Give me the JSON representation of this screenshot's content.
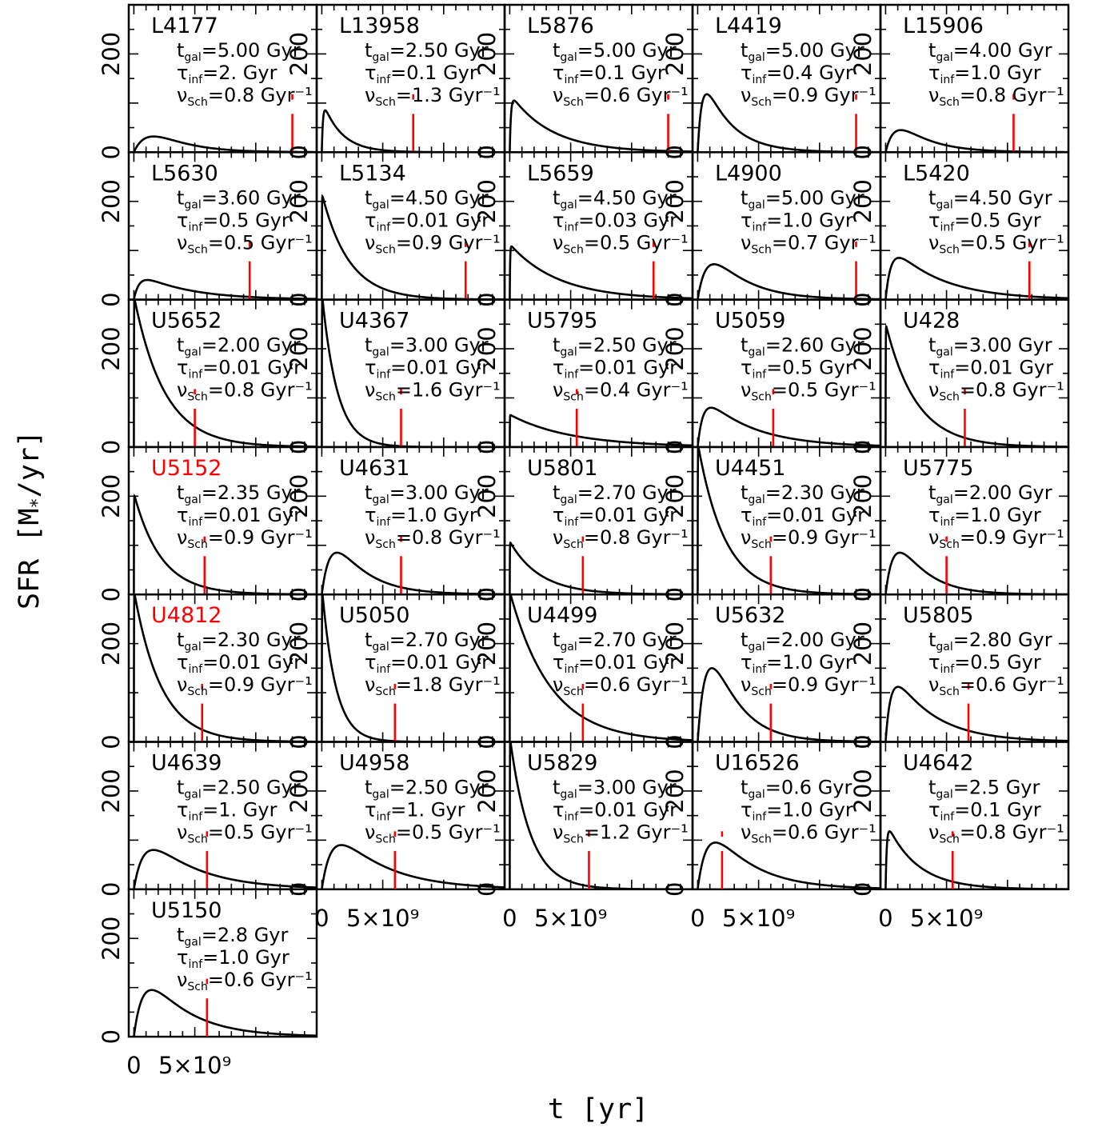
{
  "colors": {
    "curve": "#000000",
    "marker": "#ff0000",
    "highlight_name": "#ff0000",
    "frame": "#000000"
  },
  "chart_data": {
    "type": "line",
    "layout": "small-multiples-grid",
    "columns": 5,
    "xlabel": "t [yr]",
    "ylabel": "SFR [M*/yr]",
    "xlim": [
      -420000000.0,
      15000000000.0
    ],
    "ylim": [
      0,
      300
    ],
    "x_tick_labels": [
      "0",
      "5×10⁹"
    ],
    "y_tick_labels": [
      "0",
      "200"
    ],
    "grid": false,
    "legend": "none",
    "param_labels": {
      "t": "t",
      "tau": "τ",
      "nu": "ν",
      "t_sub": "gal",
      "tau_sub": "inf",
      "nu_sub": "Sch",
      "unit": "Gyr",
      "unit_inv": "Gyr⁻¹"
    },
    "panels": [
      {
        "name": "L4177",
        "t_gal": "5.00",
        "tau_inf": "2.",
        "nu_sch": "0.8",
        "peak": 32,
        "marker_t": 13.0,
        "highlight": false
      },
      {
        "name": "L13958",
        "t_gal": "2.50",
        "tau_inf": "0.1",
        "nu_sch": "1.3",
        "peak": 85,
        "marker_t": 7.5,
        "highlight": false
      },
      {
        "name": "L5876",
        "t_gal": "5.00",
        "tau_inf": "0.1",
        "nu_sch": "0.6",
        "peak": 105,
        "marker_t": 13.0,
        "highlight": false
      },
      {
        "name": "L4419",
        "t_gal": "5.00",
        "tau_inf": "0.4",
        "nu_sch": "0.9",
        "peak": 118,
        "marker_t": 13.0,
        "highlight": false
      },
      {
        "name": "L15906",
        "t_gal": "4.00",
        "tau_inf": "1.0",
        "nu_sch": "0.8",
        "peak": 45,
        "marker_t": 10.5,
        "highlight": false
      },
      {
        "name": "L5630",
        "t_gal": "3.60",
        "tau_inf": "0.5",
        "nu_sch": "0.5",
        "peak": 40,
        "marker_t": 9.5,
        "highlight": false
      },
      {
        "name": "L5134",
        "t_gal": "4.50",
        "tau_inf": "0.01",
        "nu_sch": "0.9",
        "peak": 210,
        "marker_t": 11.8,
        "highlight": false
      },
      {
        "name": "L5659",
        "t_gal": "4.50",
        "tau_inf": "0.03",
        "nu_sch": "0.5",
        "peak": 108,
        "marker_t": 11.8,
        "highlight": false
      },
      {
        "name": "L4900",
        "t_gal": "5.00",
        "tau_inf": "1.0",
        "nu_sch": "0.7",
        "peak": 72,
        "marker_t": 13.0,
        "highlight": false
      },
      {
        "name": "L5420",
        "t_gal": "4.50",
        "tau_inf": "0.5",
        "nu_sch": "0.5",
        "peak": 85,
        "marker_t": 11.8,
        "highlight": false
      },
      {
        "name": "U5652",
        "t_gal": "2.00",
        "tau_inf": "0.01",
        "nu_sch": "0.8",
        "peak": 300,
        "marker_t": 5.0,
        "highlight": false
      },
      {
        "name": "U4367",
        "t_gal": "3.00",
        "tau_inf": "0.01",
        "nu_sch": "1.6",
        "peak": 300,
        "marker_t": 6.5,
        "highlight": false
      },
      {
        "name": "U5795",
        "t_gal": "2.50",
        "tau_inf": "0.01",
        "nu_sch": "0.4",
        "peak": 65,
        "marker_t": 5.5,
        "highlight": false
      },
      {
        "name": "U5059",
        "t_gal": "2.60",
        "tau_inf": "0.5",
        "nu_sch": "0.5",
        "peak": 80,
        "marker_t": 6.2,
        "highlight": false
      },
      {
        "name": "U428",
        "t_gal": "3.00",
        "tau_inf": "0.01",
        "nu_sch": "0.8",
        "peak": 245,
        "marker_t": 6.5,
        "highlight": false
      },
      {
        "name": "U5152",
        "t_gal": "2.35",
        "tau_inf": "0.01",
        "nu_sch": "0.9",
        "peak": 200,
        "marker_t": 5.8,
        "highlight": true
      },
      {
        "name": "U4631",
        "t_gal": "3.00",
        "tau_inf": "1.0",
        "nu_sch": "0.8",
        "peak": 85,
        "marker_t": 6.5,
        "highlight": false
      },
      {
        "name": "U5801",
        "t_gal": "2.70",
        "tau_inf": "0.01",
        "nu_sch": "0.8",
        "peak": 105,
        "marker_t": 6.0,
        "highlight": false
      },
      {
        "name": "U4451",
        "t_gal": "2.30",
        "tau_inf": "0.01",
        "nu_sch": "0.9",
        "peak": 300,
        "marker_t": 6.0,
        "highlight": false
      },
      {
        "name": "U5775",
        "t_gal": "2.00",
        "tau_inf": "1.0",
        "nu_sch": "0.9",
        "peak": 85,
        "marker_t": 5.0,
        "highlight": false
      },
      {
        "name": "U4812",
        "t_gal": "2.30",
        "tau_inf": "0.01",
        "nu_sch": "0.9",
        "peak": 300,
        "marker_t": 5.6,
        "highlight": true
      },
      {
        "name": "U5050",
        "t_gal": "2.70",
        "tau_inf": "0.01",
        "nu_sch": "1.8",
        "peak": 300,
        "marker_t": 6.0,
        "highlight": false
      },
      {
        "name": "U4499",
        "t_gal": "2.70",
        "tau_inf": "0.01",
        "nu_sch": "0.6",
        "peak": 300,
        "marker_t": 6.0,
        "highlight": false
      },
      {
        "name": "U5632",
        "t_gal": "2.00",
        "tau_inf": "1.0",
        "nu_sch": "0.9",
        "peak": 150,
        "marker_t": 6.0,
        "highlight": false
      },
      {
        "name": "U5805",
        "t_gal": "2.80",
        "tau_inf": "0.5",
        "nu_sch": "0.6",
        "peak": 112,
        "marker_t": 6.8,
        "highlight": false
      },
      {
        "name": "U4639",
        "t_gal": "2.50",
        "tau_inf": "1.",
        "nu_sch": "0.5",
        "peak": 80,
        "marker_t": 6.0,
        "highlight": false
      },
      {
        "name": "U4958",
        "t_gal": "2.50",
        "tau_inf": "1.",
        "nu_sch": "0.5",
        "peak": 90,
        "marker_t": 6.0,
        "highlight": false
      },
      {
        "name": "U5829",
        "t_gal": "3.00",
        "tau_inf": "0.01",
        "nu_sch": "1.2",
        "peak": 300,
        "marker_t": 6.5,
        "highlight": false
      },
      {
        "name": "U16526",
        "t_gal": "0.6",
        "tau_inf": "1.0",
        "nu_sch": "0.6",
        "peak": 95,
        "marker_t": 2.0,
        "highlight": false
      },
      {
        "name": "U4642",
        "t_gal": "2.5",
        "tau_inf": "0.1",
        "nu_sch": "0.8",
        "peak": 118,
        "marker_t": 5.5,
        "highlight": false
      },
      {
        "name": "U5150",
        "t_gal": "2.8",
        "tau_inf": "1.0",
        "nu_sch": "0.6",
        "peak": 95,
        "marker_t": 6.0,
        "highlight": false
      }
    ]
  }
}
